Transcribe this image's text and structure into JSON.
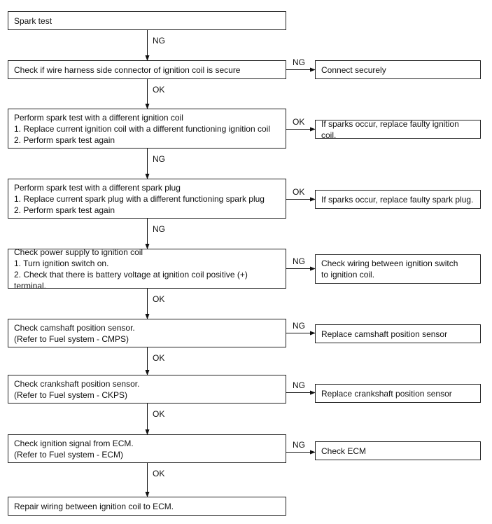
{
  "steps": [
    {
      "lines": [
        "Spark test"
      ],
      "down_label": "NG"
    },
    {
      "lines": [
        "Check if wire harness side connector of ignition coil is secure"
      ],
      "down_label": "OK",
      "side": {
        "label": "NG",
        "lines": [
          "Connect securely"
        ]
      }
    },
    {
      "lines": [
        "Perform spark test with a different ignition coil",
        "1. Replace current ignition coil with a different functioning ignition coil",
        "2. Perform spark test again"
      ],
      "down_label": "NG",
      "side": {
        "label": "OK",
        "lines": [
          "If sparks occur, replace faulty ignition coil."
        ]
      }
    },
    {
      "lines": [
        "Perform spark test with a different spark plug",
        "1. Replace current spark plug with a different functioning spark plug",
        "2. Perform spark test again"
      ],
      "down_label": "NG",
      "side": {
        "label": "OK",
        "lines": [
          "If sparks occur, replace faulty spark plug."
        ]
      }
    },
    {
      "lines": [
        "Check power supply to ignition coil",
        "1. Turn ignition switch on.",
        "2. Check that there is battery voltage at ignition coil positive (+) terminal."
      ],
      "down_label": "OK",
      "side": {
        "label": "NG",
        "lines": [
          "Check wiring between ignition switch",
          "to ignition coil."
        ]
      }
    },
    {
      "lines": [
        "Check camshaft position sensor.",
        "(Refer to Fuel system - CMPS)"
      ],
      "down_label": "OK",
      "side": {
        "label": "NG",
        "lines": [
          "Replace camshaft position sensor"
        ]
      }
    },
    {
      "lines": [
        "Check crankshaft position sensor.",
        "(Refer to Fuel system - CKPS)"
      ],
      "down_label": "OK",
      "side": {
        "label": "NG",
        "lines": [
          "Replace crankshaft position sensor"
        ]
      }
    },
    {
      "lines": [
        "Check ignition signal from ECM.",
        "(Refer to Fuel system - ECM)"
      ],
      "down_label": "OK",
      "side": {
        "label": "NG",
        "lines": [
          "Check ECM"
        ]
      }
    },
    {
      "lines": [
        "Repair wiring between ignition coil to ECM."
      ]
    }
  ]
}
